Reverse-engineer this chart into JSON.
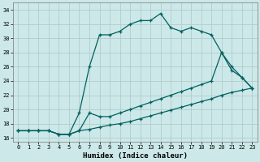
{
  "xlabel": "Humidex (Indice chaleur)",
  "bg_color": "#cce8e8",
  "grid_color": "#b0cccc",
  "line_color": "#006060",
  "xlim": [
    -0.5,
    23.5
  ],
  "ylim": [
    15.5,
    35
  ],
  "yticks": [
    16,
    18,
    20,
    22,
    24,
    26,
    28,
    30,
    32,
    34
  ],
  "xticks": [
    0,
    1,
    2,
    3,
    4,
    5,
    6,
    7,
    8,
    9,
    10,
    11,
    12,
    13,
    14,
    15,
    16,
    17,
    18,
    19,
    20,
    21,
    22,
    23
  ],
  "line1_x": [
    0,
    1,
    2,
    3,
    4,
    5,
    6,
    7,
    8,
    9,
    10,
    11,
    12,
    13,
    14,
    15,
    16,
    17,
    18,
    19,
    20,
    21,
    22,
    23
  ],
  "line1_y": [
    17,
    17,
    17,
    17,
    16.5,
    16.5,
    19.5,
    26,
    30.5,
    30.5,
    31,
    32,
    32.5,
    32.5,
    33.5,
    31.5,
    31,
    31.5,
    31,
    30.5,
    28,
    26,
    24.5,
    23
  ],
  "line2_x": [
    0,
    1,
    2,
    3,
    4,
    5,
    6,
    7,
    8,
    9,
    10,
    11,
    12,
    13,
    14,
    15,
    16,
    17,
    18,
    19,
    20,
    21,
    22,
    23
  ],
  "line2_y": [
    17,
    17,
    17,
    17,
    16.5,
    16.5,
    17,
    17.2,
    17.5,
    17.8,
    18.0,
    18.3,
    18.7,
    19.1,
    19.5,
    19.9,
    20.3,
    20.7,
    21.1,
    21.5,
    22.0,
    22.4,
    22.7,
    23.0
  ],
  "line3_x": [
    0,
    1,
    2,
    3,
    4,
    5,
    6,
    7,
    8,
    9,
    10,
    11,
    12,
    13,
    14,
    15,
    16,
    17,
    18,
    19,
    20,
    21,
    22,
    23
  ],
  "line3_y": [
    17,
    17,
    17,
    17,
    16.5,
    16.5,
    17,
    19.5,
    19.0,
    19.0,
    19.5,
    20,
    20.5,
    21,
    21.5,
    22,
    22.5,
    23,
    23.5,
    24,
    28,
    25.5,
    24.5,
    23
  ]
}
